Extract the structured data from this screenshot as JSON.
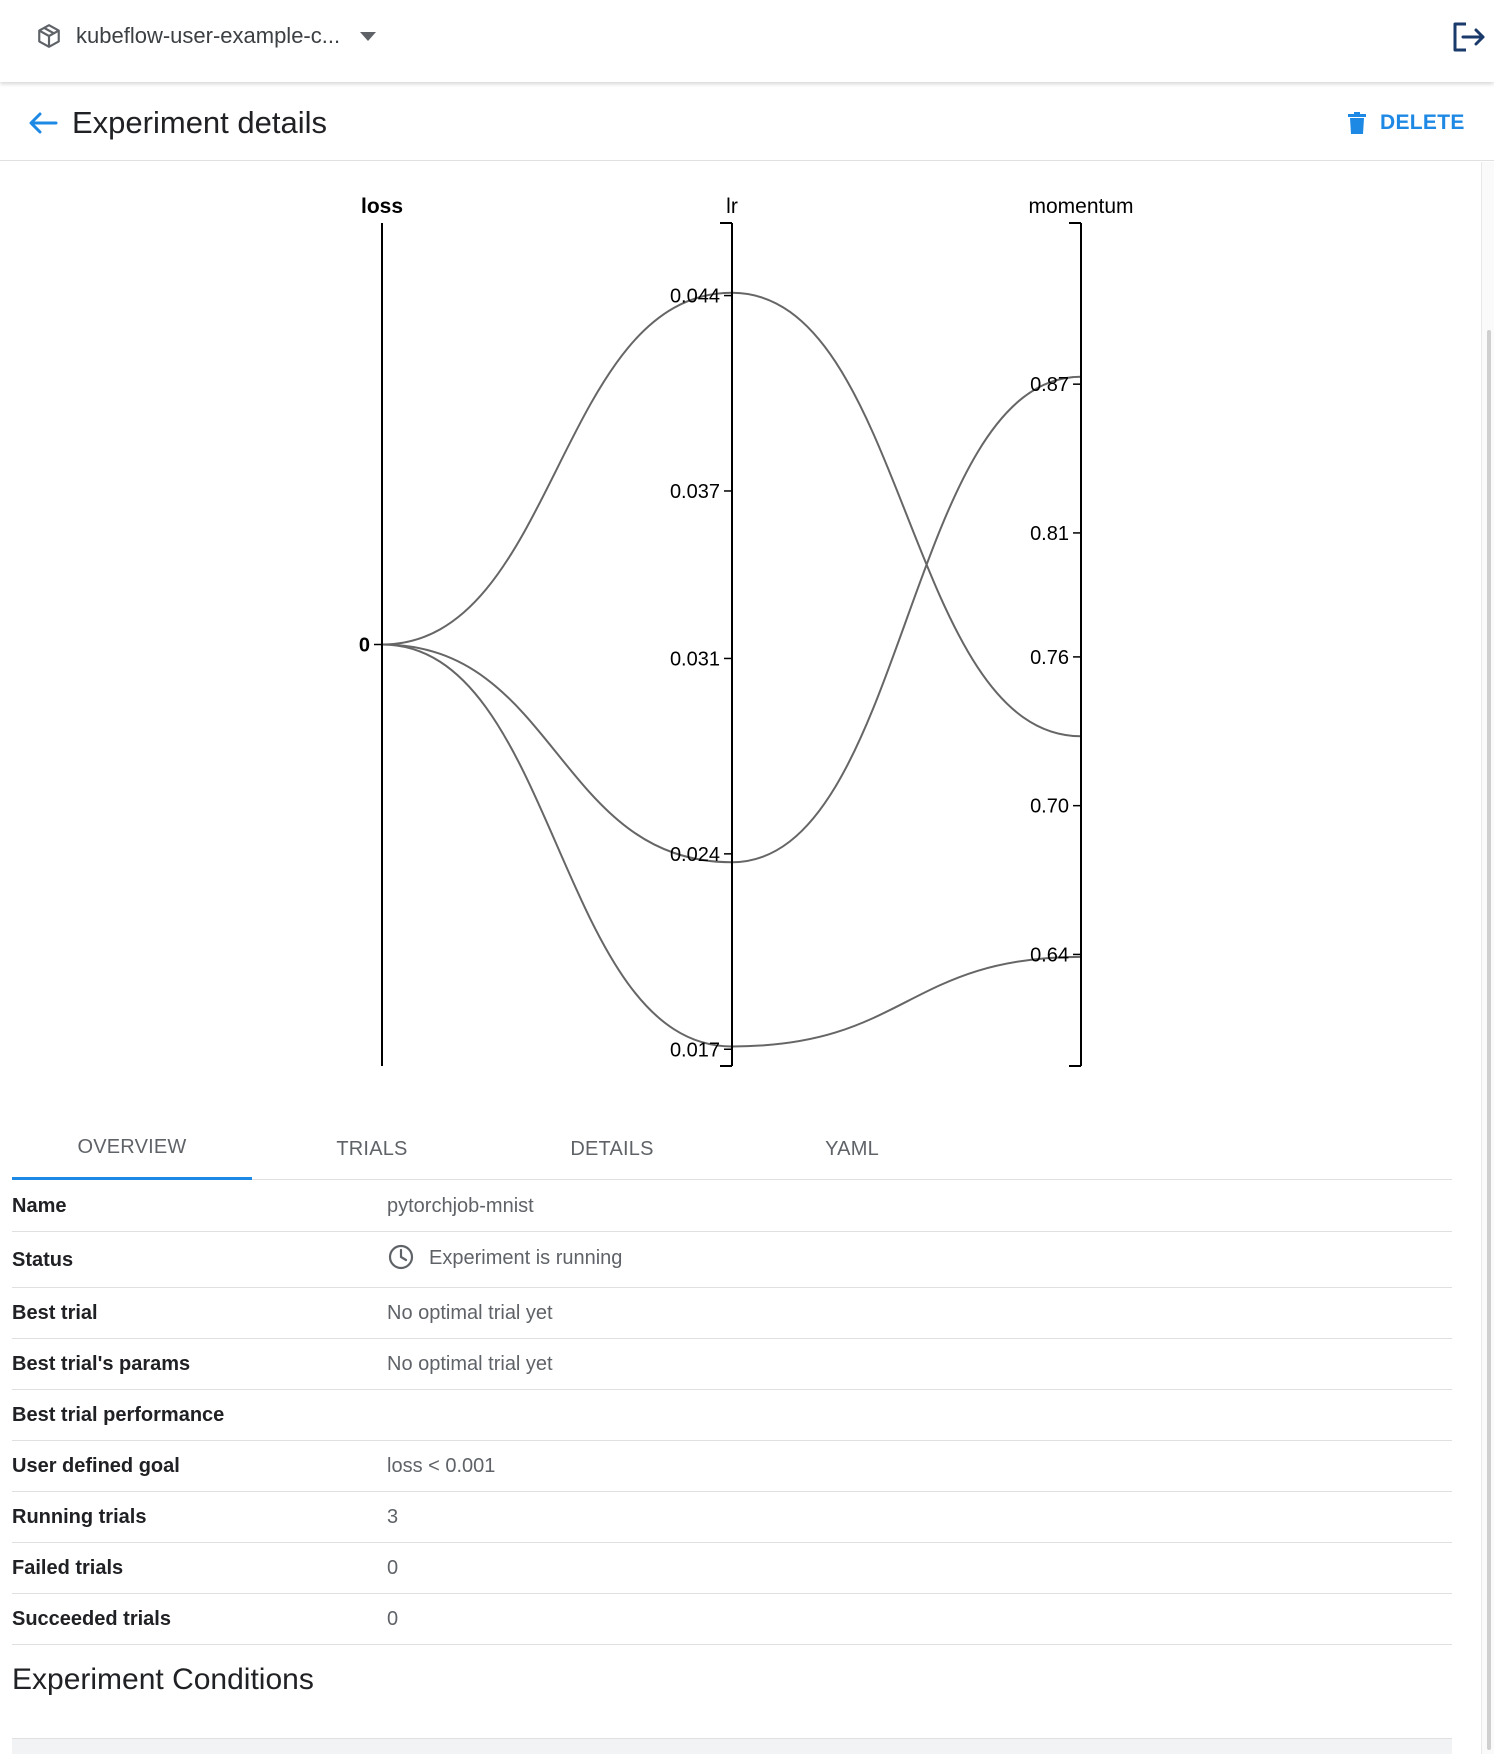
{
  "topbar": {
    "namespace": "kubeflow-user-example-c...",
    "namespace_icon": "cube-icon",
    "dropdown_icon": "caret-down-icon",
    "logout_icon": "logout-icon"
  },
  "header": {
    "back_icon": "arrow-back-icon",
    "title": "Experiment details",
    "delete_label": "DELETE",
    "delete_icon": "trash-icon"
  },
  "colors": {
    "accent": "#1e88e5",
    "line": "#666666",
    "axis": "#000000"
  },
  "chart_data": {
    "type": "parallel-coordinates",
    "dimensions": [
      {
        "name": "loss",
        "ticks": [
          "0"
        ],
        "range": [
          0,
          0
        ],
        "label_bold": true
      },
      {
        "name": "lr",
        "ticks": [
          "0.044",
          "0.037",
          "0.031",
          "0.024",
          "0.017"
        ],
        "range": [
          0.0164,
          0.0466
        ]
      },
      {
        "name": "momentum",
        "ticks": [
          "0.87",
          "0.81",
          "0.76",
          "0.70",
          "0.64"
        ],
        "range": [
          0.595,
          0.935
        ]
      }
    ],
    "series": [
      {
        "loss": 0,
        "lr": 0.0441,
        "momentum": 0.728
      },
      {
        "loss": 0,
        "lr": 0.0237,
        "momentum": 0.873
      },
      {
        "loss": 0,
        "lr": 0.0171,
        "momentum": 0.639
      }
    ]
  },
  "tabs": [
    "OVERVIEW",
    "TRIALS",
    "DETAILS",
    "YAML"
  ],
  "overview": [
    {
      "key": "Name",
      "value": "pytorchjob-mnist"
    },
    {
      "key": "Status",
      "value": "Experiment is running",
      "icon": "clock-icon"
    },
    {
      "key": "Best trial",
      "value": "No optimal trial yet"
    },
    {
      "key": "Best trial's params",
      "value": "No optimal trial yet"
    },
    {
      "key": "Best trial performance",
      "value": ""
    },
    {
      "key": "User defined goal",
      "value": "loss < 0.001"
    },
    {
      "key": "Running trials",
      "value": "3"
    },
    {
      "key": "Failed trials",
      "value": "0"
    },
    {
      "key": "Succeeded trials",
      "value": "0"
    }
  ],
  "conditions": {
    "title": "Experiment Conditions"
  }
}
